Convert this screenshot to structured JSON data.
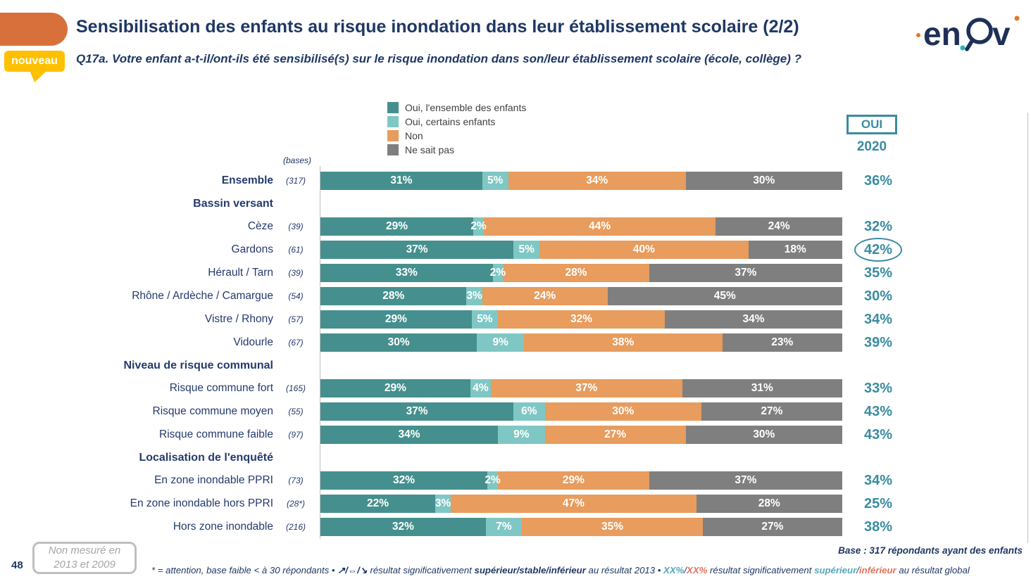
{
  "header": {
    "title": "Sensibilisation des enfants au risque inondation dans leur établissement scolaire (2/2)",
    "subtitle": "Q17a. Votre enfant a-t-il/ont-ils été sensibilisé(s) sur le risque inondation dans son/leur établissement scolaire (école, collège) ?",
    "nouveau_badge": "nouveau",
    "brand": "enov"
  },
  "colors": {
    "navy": "#1F3864",
    "label_navy": "#253A6E",
    "teal_dark": "#45908E",
    "teal_light": "#7FC7C5",
    "orange": "#E89C5D",
    "gray": "#7F7F7F",
    "oui_teal": "#3A8CA0",
    "badge_gold": "#FFC000",
    "shape_orange": "#D8703B"
  },
  "legend": {
    "items": [
      {
        "label": "Oui, l'ensemble des enfants",
        "color": "#45908E"
      },
      {
        "label": "Oui, certains enfants",
        "color": "#7FC7C5"
      },
      {
        "label": "Non",
        "color": "#E89C5D"
      },
      {
        "label": "Ne sait pas",
        "color": "#7F7F7F"
      }
    ]
  },
  "right_column": {
    "box_label": "OUI",
    "year": "2020"
  },
  "bases_header": "(bases)",
  "chart_data": {
    "type": "bar",
    "stacked": true,
    "orientation": "horizontal",
    "unit": "%",
    "series": [
      "Oui, l'ensemble des enfants",
      "Oui, certains enfants",
      "Non",
      "Ne sait pas"
    ],
    "series_colors": [
      "#45908E",
      "#7FC7C5",
      "#E89C5D",
      "#7F7F7F"
    ],
    "rows": [
      {
        "type": "bar",
        "label": "Ensemble",
        "bold": true,
        "base": "(317)",
        "values": [
          31,
          5,
          34,
          30
        ],
        "oui": "36%"
      },
      {
        "type": "header",
        "label": "Bassin versant"
      },
      {
        "type": "bar",
        "label": "Cèze",
        "base": "(39)",
        "values": [
          29,
          2,
          44,
          24
        ],
        "oui": "32%"
      },
      {
        "type": "bar",
        "label": "Gardons",
        "base": "(61)",
        "values": [
          37,
          5,
          40,
          18
        ],
        "oui": "42%",
        "circled": true
      },
      {
        "type": "bar",
        "label": "Hérault / Tarn",
        "base": "(39)",
        "values": [
          33,
          2,
          28,
          37
        ],
        "oui": "35%"
      },
      {
        "type": "bar",
        "label": "Rhône / Ardèche / Camargue",
        "base": "(54)",
        "values": [
          28,
          3,
          24,
          45
        ],
        "oui": "30%"
      },
      {
        "type": "bar",
        "label": "Vistre / Rhony",
        "base": "(57)",
        "values": [
          29,
          5,
          32,
          34
        ],
        "oui": "34%"
      },
      {
        "type": "bar",
        "label": "Vidourle",
        "base": "(67)",
        "values": [
          30,
          9,
          38,
          23
        ],
        "oui": "39%"
      },
      {
        "type": "header",
        "label": "Niveau de risque communal"
      },
      {
        "type": "bar",
        "label": "Risque commune fort",
        "base": "(165)",
        "values": [
          29,
          4,
          37,
          31
        ],
        "oui": "33%"
      },
      {
        "type": "bar",
        "label": "Risque commune moyen",
        "base": "(55)",
        "values": [
          37,
          6,
          30,
          27
        ],
        "oui": "43%"
      },
      {
        "type": "bar",
        "label": "Risque commune faible",
        "base": "(97)",
        "values": [
          34,
          9,
          27,
          30
        ],
        "oui": "43%"
      },
      {
        "type": "header",
        "label": "Localisation de l'enquêté"
      },
      {
        "type": "bar",
        "label": "En zone inondable PPRI",
        "base": "(73)",
        "values": [
          32,
          2,
          29,
          37
        ],
        "oui": "34%"
      },
      {
        "type": "bar",
        "label": "En zone inondable hors PPRI",
        "base": "(28*)",
        "values": [
          22,
          3,
          47,
          28
        ],
        "oui": "25%"
      },
      {
        "type": "bar",
        "label": "Hors zone inondable",
        "base": "(216)",
        "values": [
          32,
          7,
          35,
          27
        ],
        "oui": "38%"
      }
    ],
    "title": "Sensibilisation des enfants au risque inondation dans leur établissement scolaire (2/2)",
    "xlabel": "",
    "ylabel": "",
    "xlim": [
      0,
      100
    ],
    "grid": false,
    "legend_position": "top-center"
  },
  "footer": {
    "page_number": "48",
    "note_box_line1": "Non mesuré en",
    "note_box_line2": "2013 et 2009",
    "base_note": "Base : 317 répondants ayant des enfants",
    "footnote": {
      "p1": "* = attention, base faible < à 30 répondants • ",
      "arrows": "↗/⇔/↘",
      "p2": " résultat significativement ",
      "b1": "supérieur/stable/inférieur",
      "p3": " au résultat 2013 • ",
      "xx_sup": "XX%",
      "slash1": "/",
      "xx_inf": "XX%",
      "p4": " résultat significativement ",
      "sup": "supérieur",
      "slash2": "/",
      "inf": "inférieur",
      "p5": " au résultat global"
    }
  }
}
